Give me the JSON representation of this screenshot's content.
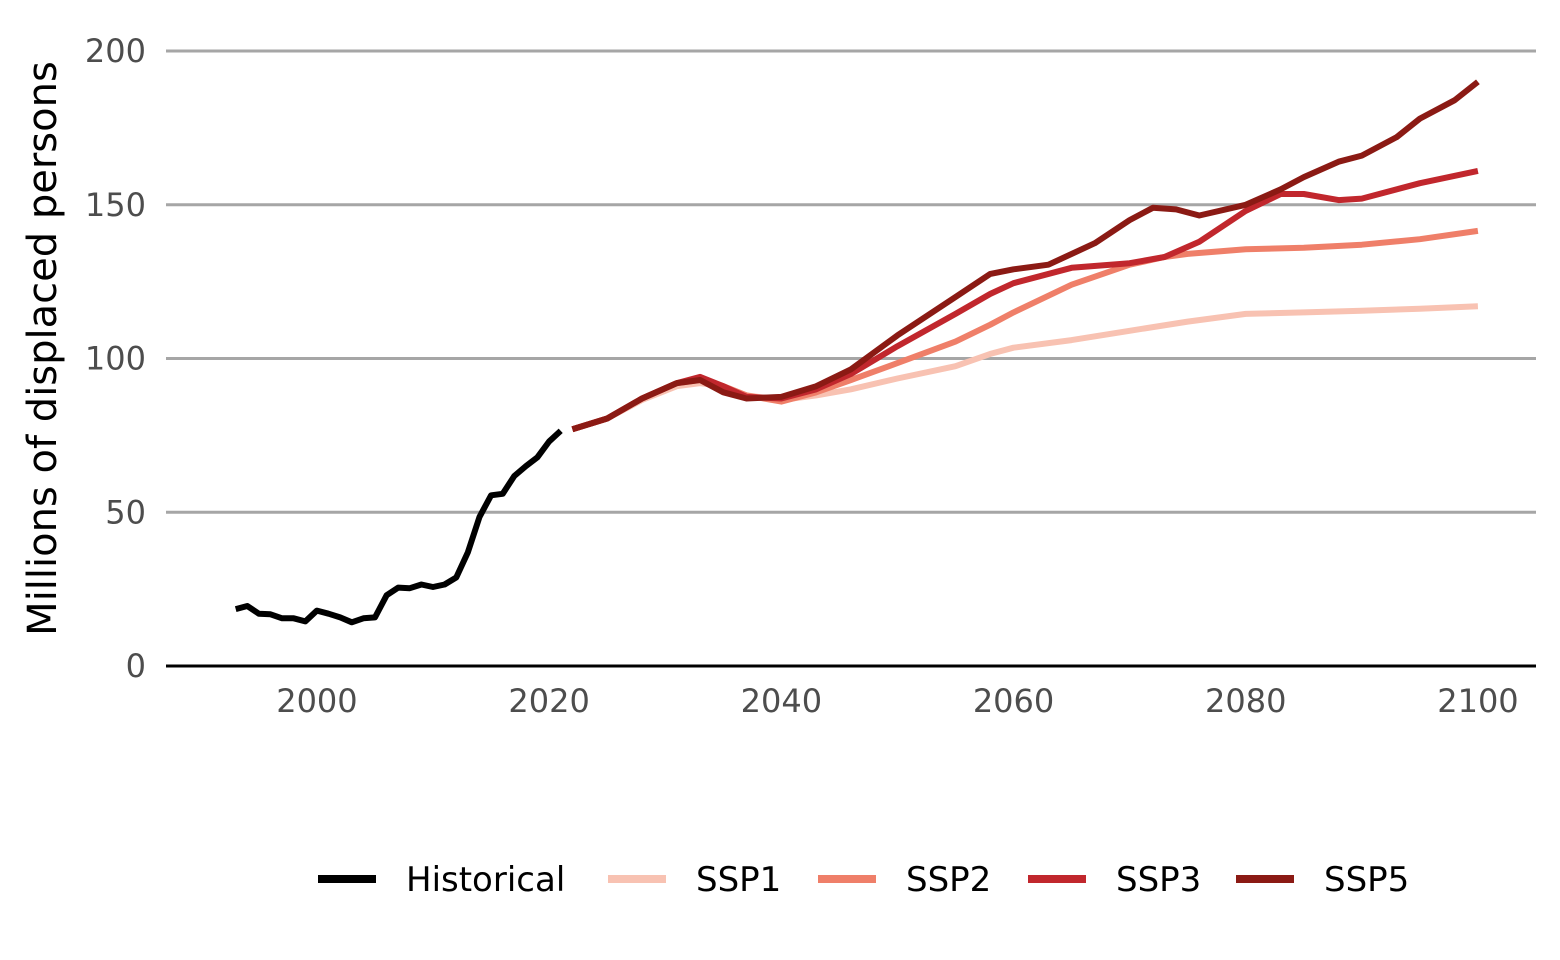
{
  "chart_data": {
    "type": "line",
    "title": "",
    "xlabel": "",
    "ylabel": "Millions of displaced persons",
    "xlim": [
      1987,
      2105
    ],
    "ylim": [
      0,
      200
    ],
    "x_ticks": [
      2000,
      2020,
      2040,
      2060,
      2080,
      2100
    ],
    "x_tick_labels": [
      "2000",
      "2020",
      "2040",
      "2060",
      "2080",
      "2100"
    ],
    "y_ticks": [
      0,
      50,
      100,
      150,
      200
    ],
    "y_tick_labels": [
      "0",
      "50",
      "100",
      "150",
      "200"
    ],
    "grid": "horizontal",
    "legend_position": "bottom",
    "colors": {
      "Historical": "#000000",
      "SSP1": "#f8c2b2",
      "SSP2": "#ef7f69",
      "SSP3": "#c1272d",
      "SSP5": "#8b1a14"
    },
    "series": [
      {
        "name": "Historical",
        "x": [
          1993,
          1994,
          1995,
          1996,
          1997,
          1998,
          1999,
          2000,
          2001,
          2002,
          2003,
          2004,
          2005,
          2006,
          2007,
          2008,
          2009,
          2010,
          2011,
          2012,
          2013,
          2014,
          2015,
          2016,
          2017,
          2018,
          2019,
          2020,
          2021
        ],
        "y": [
          18.5,
          19.5,
          17.0,
          16.8,
          15.5,
          15.5,
          14.5,
          18.0,
          17.0,
          15.8,
          14.2,
          15.5,
          15.8,
          23.0,
          25.5,
          25.3,
          26.5,
          25.7,
          26.5,
          28.8,
          37.0,
          48.5,
          55.5,
          56.0,
          61.8,
          65.0,
          67.9,
          73.0,
          76.5
        ]
      },
      {
        "name": "SSP1",
        "x": [
          2022,
          2025,
          2028,
          2031,
          2033,
          2035,
          2037,
          2040,
          2043,
          2046,
          2050,
          2055,
          2058,
          2060,
          2065,
          2070,
          2075,
          2080,
          2085,
          2090,
          2095,
          2100
        ],
        "y": [
          77,
          80.5,
          86.5,
          91,
          92,
          91,
          88,
          86.5,
          88,
          90,
          93.5,
          97.5,
          101.5,
          103.5,
          106,
          109,
          112,
          114.5,
          115,
          115.5,
          116.2,
          117
        ]
      },
      {
        "name": "SSP2",
        "x": [
          2022,
          2025,
          2028,
          2031,
          2033,
          2035,
          2037,
          2040,
          2043,
          2046,
          2050,
          2055,
          2058,
          2060,
          2065,
          2070,
          2073,
          2075,
          2080,
          2085,
          2090,
          2095,
          2100
        ],
        "y": [
          77,
          80.5,
          87,
          92,
          93,
          91,
          88,
          86,
          89,
          93,
          98.5,
          105.5,
          111,
          115,
          124,
          130.5,
          133,
          134,
          135.5,
          136,
          137,
          138.8,
          141.5
        ]
      },
      {
        "name": "SSP3",
        "x": [
          2022,
          2025,
          2028,
          2031,
          2033,
          2035,
          2037,
          2040,
          2043,
          2046,
          2050,
          2055,
          2058,
          2060,
          2065,
          2070,
          2073,
          2076,
          2080,
          2083,
          2085,
          2088,
          2090,
          2095,
          2100
        ],
        "y": [
          77,
          80.5,
          87,
          92,
          94,
          91,
          87.5,
          87,
          90,
          95,
          104,
          114.5,
          121,
          124.5,
          129.5,
          131,
          133,
          138,
          148,
          153.5,
          153.5,
          151.5,
          152,
          157,
          161
        ]
      },
      {
        "name": "SSP5",
        "x": [
          2022,
          2025,
          2028,
          2031,
          2033,
          2035,
          2037,
          2040,
          2043,
          2046,
          2050,
          2055,
          2058,
          2060,
          2063,
          2067,
          2070,
          2072,
          2074,
          2076,
          2080,
          2083,
          2085,
          2088,
          2090,
          2093,
          2095,
          2098,
          2100
        ],
        "y": [
          77,
          80.5,
          87,
          92,
          93,
          89,
          87,
          87.5,
          91,
          96.5,
          107.5,
          120,
          127.5,
          129,
          130.5,
          137.5,
          145,
          149,
          148.5,
          146.5,
          150,
          155,
          159,
          164,
          166,
          172,
          178,
          184,
          190
        ]
      }
    ]
  }
}
